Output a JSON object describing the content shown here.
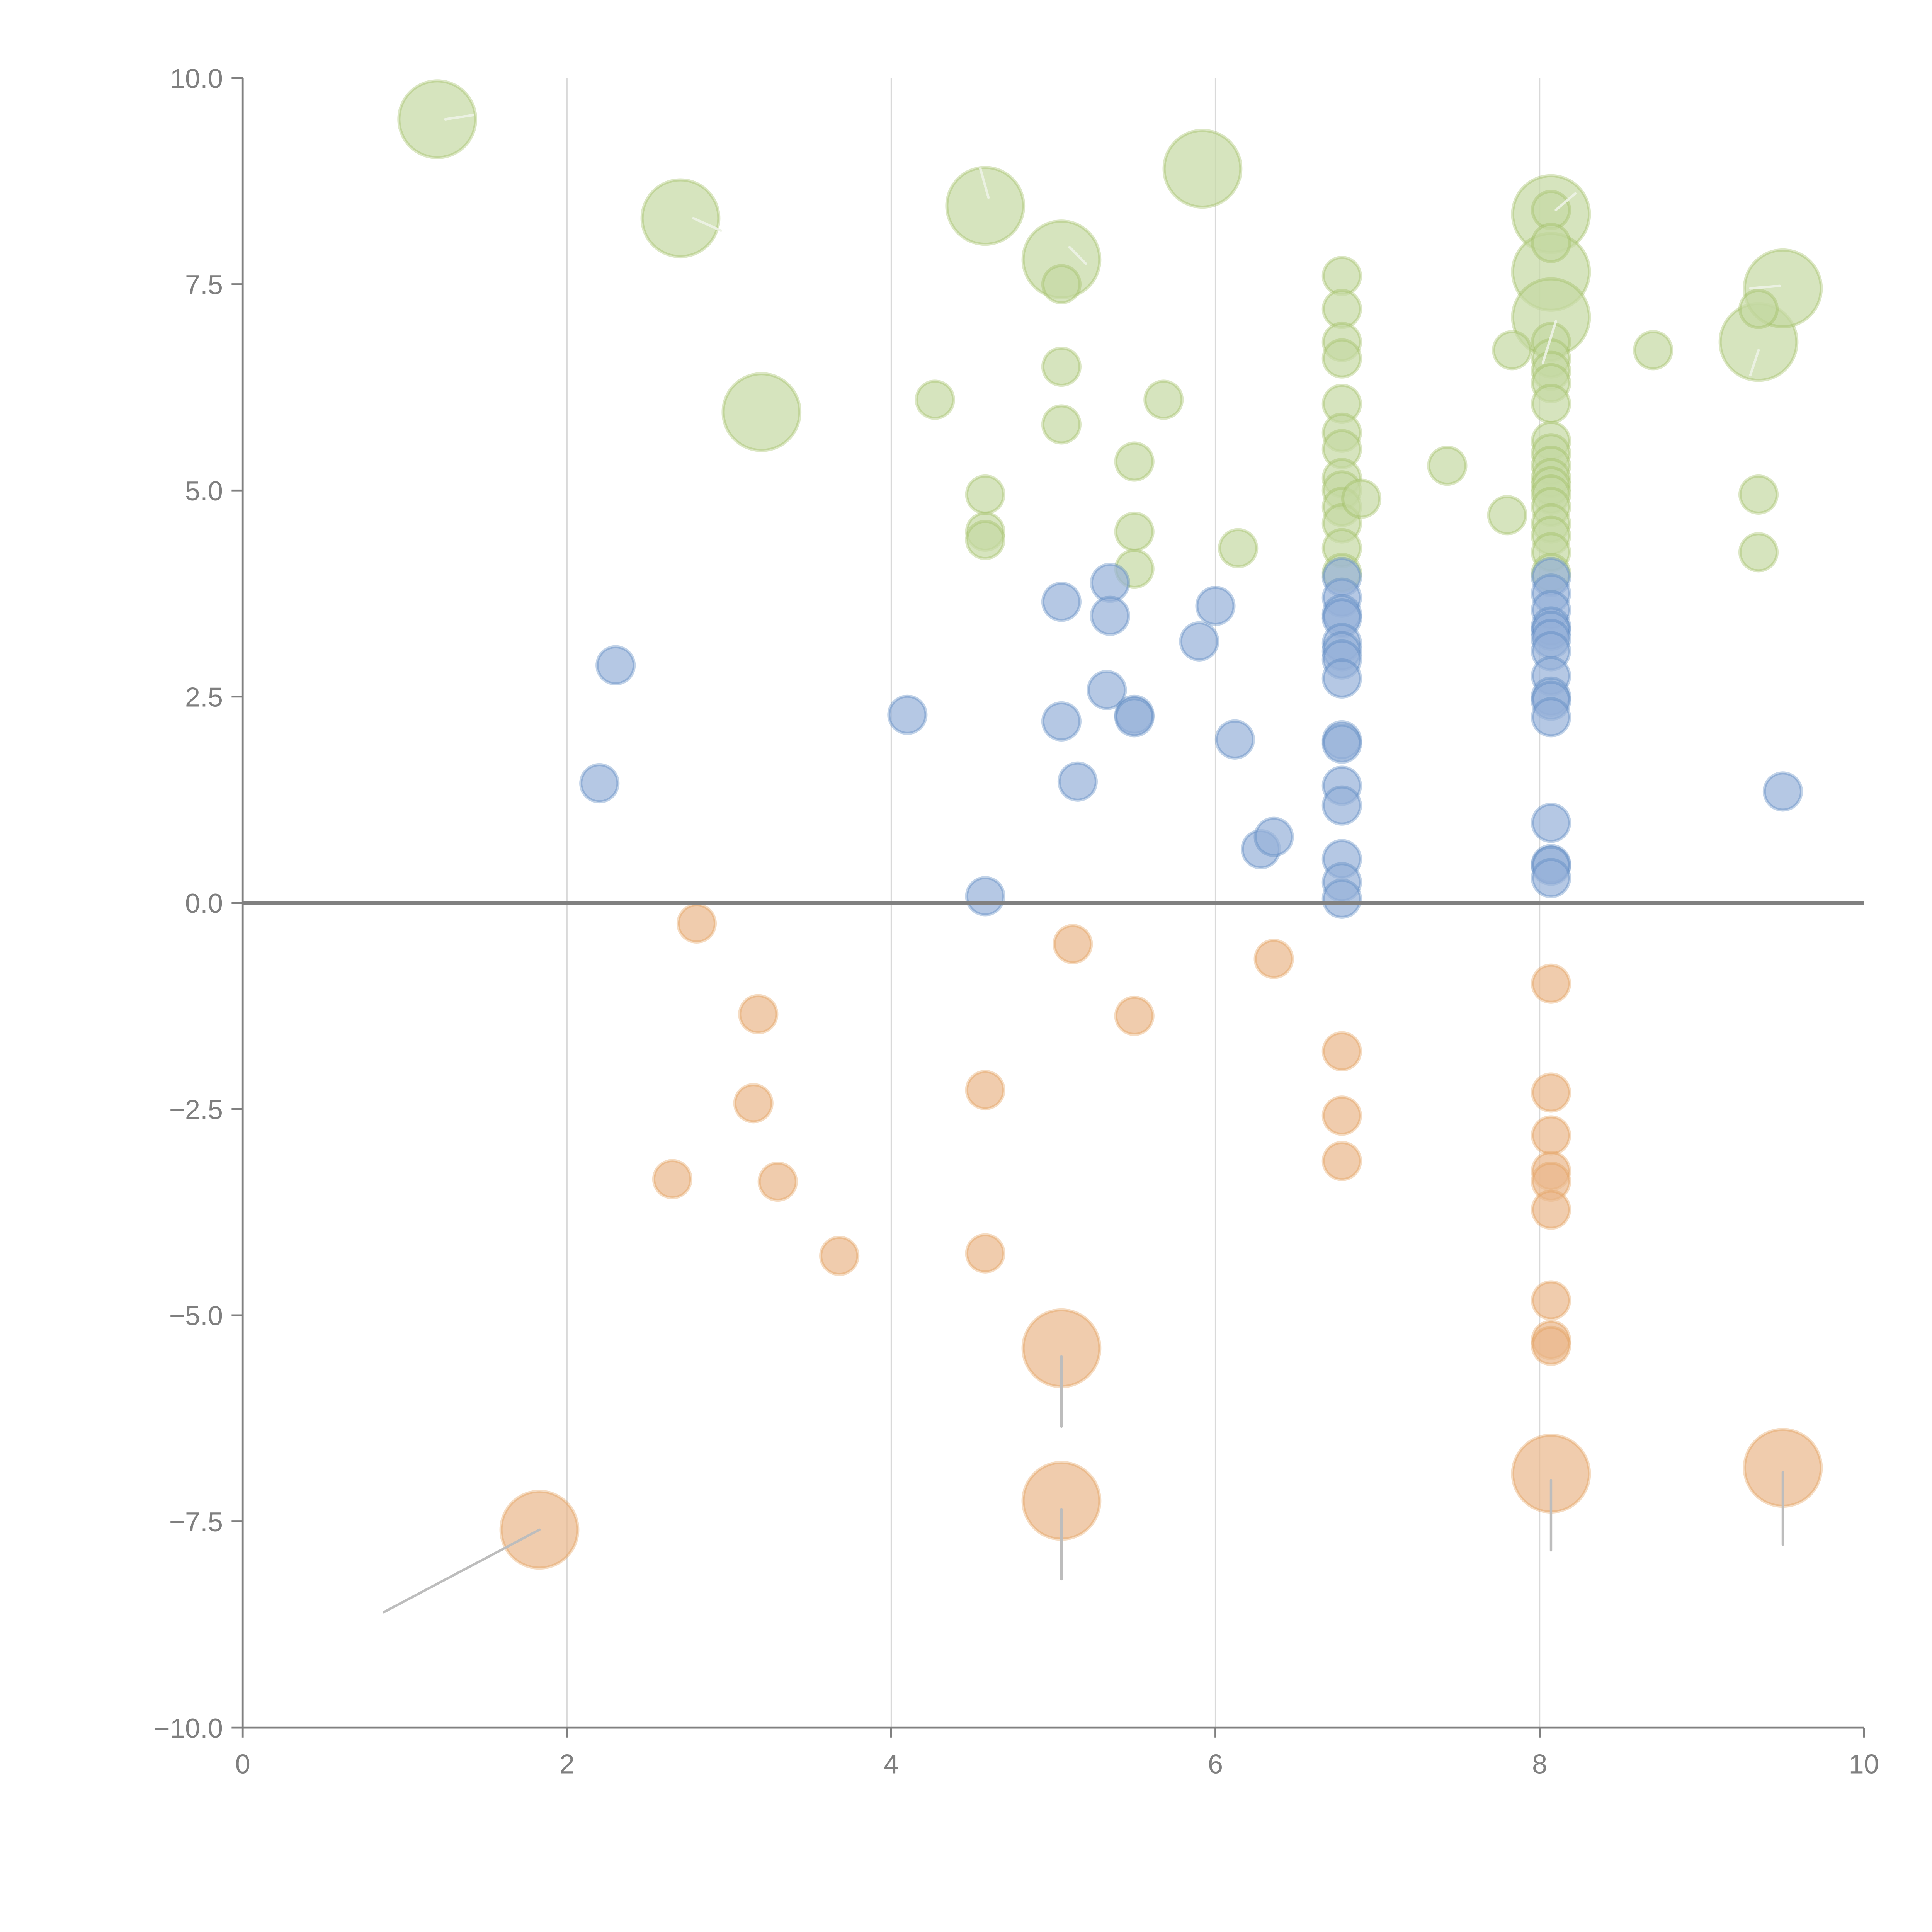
{
  "chart_data": {
    "type": "scatter",
    "subtype": "bubble",
    "title": "",
    "xlabel": "",
    "ylabel": "",
    "xlim": [
      0,
      10
    ],
    "ylim": [
      -10,
      10
    ],
    "xticks": [
      "0",
      "2",
      "4",
      "6",
      "8",
      "10"
    ],
    "yticks": [
      "10.0",
      "7.5",
      "5.0",
      "2.5",
      "0.0",
      "−2.5",
      "−5.0",
      "−7.5",
      "−10.0"
    ],
    "grid": "vertical",
    "zero_line": true,
    "legend": "none",
    "colors": {
      "green": "#9bbb59",
      "blue": "#4f81bd",
      "orange": "#e39a54"
    },
    "series": [
      {
        "name": "green",
        "color": "#9bbb59",
        "points": [
          {
            "x": 1.2,
            "y": 9.5,
            "size": "large"
          },
          {
            "x": 2.7,
            "y": 8.3,
            "size": "large"
          },
          {
            "x": 3.2,
            "y": 5.95,
            "size": "large"
          },
          {
            "x": 4.58,
            "y": 8.45,
            "size": "large"
          },
          {
            "x": 5.05,
            "y": 7.8,
            "size": "large"
          },
          {
            "x": 5.92,
            "y": 8.9,
            "size": "large"
          },
          {
            "x": 8.07,
            "y": 8.35,
            "size": "large"
          },
          {
            "x": 8.07,
            "y": 7.65,
            "size": "large"
          },
          {
            "x": 8.07,
            "y": 7.1,
            "size": "large"
          },
          {
            "x": 9.35,
            "y": 6.8,
            "size": "large"
          },
          {
            "x": 9.5,
            "y": 7.45,
            "size": "large"
          },
          {
            "x": 4.27,
            "y": 6.1,
            "size": "small"
          },
          {
            "x": 5.05,
            "y": 7.5,
            "size": "small"
          },
          {
            "x": 5.05,
            "y": 6.5,
            "size": "small"
          },
          {
            "x": 5.05,
            "y": 5.8,
            "size": "small"
          },
          {
            "x": 5.68,
            "y": 6.1,
            "size": "small"
          },
          {
            "x": 5.5,
            "y": 5.35,
            "size": "small"
          },
          {
            "x": 4.58,
            "y": 4.95,
            "size": "small"
          },
          {
            "x": 4.58,
            "y": 4.5,
            "size": "small"
          },
          {
            "x": 4.58,
            "y": 4.4,
            "size": "small"
          },
          {
            "x": 5.5,
            "y": 4.5,
            "size": "small"
          },
          {
            "x": 5.5,
            "y": 4.05,
            "size": "small"
          },
          {
            "x": 6.14,
            "y": 4.3,
            "size": "small"
          },
          {
            "x": 6.78,
            "y": 7.6,
            "size": "small"
          },
          {
            "x": 6.78,
            "y": 7.2,
            "size": "small"
          },
          {
            "x": 6.78,
            "y": 6.8,
            "size": "small"
          },
          {
            "x": 6.78,
            "y": 6.6,
            "size": "small"
          },
          {
            "x": 6.78,
            "y": 6.05,
            "size": "small"
          },
          {
            "x": 6.78,
            "y": 5.7,
            "size": "small"
          },
          {
            "x": 6.78,
            "y": 5.5,
            "size": "small"
          },
          {
            "x": 6.78,
            "y": 5.15,
            "size": "small"
          },
          {
            "x": 6.78,
            "y": 5.0,
            "size": "small"
          },
          {
            "x": 6.78,
            "y": 4.8,
            "size": "small"
          },
          {
            "x": 6.78,
            "y": 4.6,
            "size": "small"
          },
          {
            "x": 6.78,
            "y": 4.3,
            "size": "small"
          },
          {
            "x": 6.78,
            "y": 4.0,
            "size": "small"
          },
          {
            "x": 6.9,
            "y": 4.9,
            "size": "small"
          },
          {
            "x": 7.43,
            "y": 5.3,
            "size": "small"
          },
          {
            "x": 7.83,
            "y": 6.7,
            "size": "small"
          },
          {
            "x": 7.8,
            "y": 4.7,
            "size": "small"
          },
          {
            "x": 8.07,
            "y": 8.4,
            "size": "small"
          },
          {
            "x": 8.07,
            "y": 8.0,
            "size": "small"
          },
          {
            "x": 8.07,
            "y": 6.8,
            "size": "small"
          },
          {
            "x": 8.07,
            "y": 6.6,
            "size": "small"
          },
          {
            "x": 8.07,
            "y": 6.45,
            "size": "small"
          },
          {
            "x": 8.07,
            "y": 6.3,
            "size": "small"
          },
          {
            "x": 8.07,
            "y": 6.05,
            "size": "small"
          },
          {
            "x": 8.07,
            "y": 5.6,
            "size": "small"
          },
          {
            "x": 8.07,
            "y": 5.45,
            "size": "small"
          },
          {
            "x": 8.07,
            "y": 5.3,
            "size": "small"
          },
          {
            "x": 8.07,
            "y": 5.15,
            "size": "small"
          },
          {
            "x": 8.07,
            "y": 5.05,
            "size": "small"
          },
          {
            "x": 8.07,
            "y": 4.95,
            "size": "small"
          },
          {
            "x": 8.07,
            "y": 4.8,
            "size": "small"
          },
          {
            "x": 8.07,
            "y": 4.6,
            "size": "small"
          },
          {
            "x": 8.07,
            "y": 4.45,
            "size": "small"
          },
          {
            "x": 8.07,
            "y": 4.25,
            "size": "small"
          },
          {
            "x": 8.07,
            "y": 4.0,
            "size": "small"
          },
          {
            "x": 8.7,
            "y": 6.7,
            "size": "small"
          },
          {
            "x": 9.35,
            "y": 7.2,
            "size": "small"
          },
          {
            "x": 9.35,
            "y": 4.95,
            "size": "small"
          },
          {
            "x": 9.35,
            "y": 4.25,
            "size": "small"
          }
        ]
      },
      {
        "name": "blue",
        "color": "#4f81bd",
        "points": [
          {
            "x": 2.2,
            "y": 1.45
          },
          {
            "x": 2.3,
            "y": 2.88
          },
          {
            "x": 4.1,
            "y": 2.28
          },
          {
            "x": 4.58,
            "y": 0.08
          },
          {
            "x": 5.05,
            "y": 3.65
          },
          {
            "x": 5.05,
            "y": 2.2
          },
          {
            "x": 5.15,
            "y": 1.47
          },
          {
            "x": 5.33,
            "y": 2.58
          },
          {
            "x": 5.35,
            "y": 3.88
          },
          {
            "x": 5.35,
            "y": 3.48
          },
          {
            "x": 5.5,
            "y": 2.28
          },
          {
            "x": 5.5,
            "y": 2.25
          },
          {
            "x": 5.9,
            "y": 3.17
          },
          {
            "x": 6.0,
            "y": 3.6
          },
          {
            "x": 6.12,
            "y": 1.98
          },
          {
            "x": 6.28,
            "y": 0.65
          },
          {
            "x": 6.36,
            "y": 0.8
          },
          {
            "x": 6.78,
            "y": 3.95
          },
          {
            "x": 6.78,
            "y": 3.7
          },
          {
            "x": 6.78,
            "y": 3.5
          },
          {
            "x": 6.78,
            "y": 3.45
          },
          {
            "x": 6.78,
            "y": 3.15
          },
          {
            "x": 6.78,
            "y": 3.05
          },
          {
            "x": 6.78,
            "y": 2.95
          },
          {
            "x": 6.78,
            "y": 2.72
          },
          {
            "x": 6.78,
            "y": 1.97
          },
          {
            "x": 6.78,
            "y": 1.93
          },
          {
            "x": 6.78,
            "y": 1.42
          },
          {
            "x": 6.78,
            "y": 1.18
          },
          {
            "x": 6.78,
            "y": 0.53
          },
          {
            "x": 6.78,
            "y": 0.25
          },
          {
            "x": 6.78,
            "y": 0.05
          },
          {
            "x": 8.07,
            "y": 3.95
          },
          {
            "x": 8.07,
            "y": 3.75
          },
          {
            "x": 8.07,
            "y": 3.55
          },
          {
            "x": 8.07,
            "y": 3.35
          },
          {
            "x": 8.07,
            "y": 3.3
          },
          {
            "x": 8.07,
            "y": 3.2
          },
          {
            "x": 8.07,
            "y": 3.05
          },
          {
            "x": 8.07,
            "y": 2.75
          },
          {
            "x": 8.07,
            "y": 2.5
          },
          {
            "x": 8.07,
            "y": 2.45
          },
          {
            "x": 8.07,
            "y": 2.25
          },
          {
            "x": 8.07,
            "y": 0.97
          },
          {
            "x": 8.07,
            "y": 0.47
          },
          {
            "x": 8.07,
            "y": 0.45
          },
          {
            "x": 8.07,
            "y": 0.3
          },
          {
            "x": 9.5,
            "y": 1.35
          }
        ]
      },
      {
        "name": "orange",
        "color": "#e39a54",
        "points": [
          {
            "x": 2.8,
            "y": -0.25,
            "size": "small"
          },
          {
            "x": 3.18,
            "y": -1.35,
            "size": "small"
          },
          {
            "x": 3.15,
            "y": -2.43,
            "size": "small"
          },
          {
            "x": 2.65,
            "y": -3.35,
            "size": "small"
          },
          {
            "x": 3.3,
            "y": -3.38,
            "size": "small"
          },
          {
            "x": 3.68,
            "y": -4.28,
            "size": "small"
          },
          {
            "x": 4.58,
            "y": -2.27,
            "size": "small"
          },
          {
            "x": 4.58,
            "y": -4.25,
            "size": "small"
          },
          {
            "x": 5.12,
            "y": -0.5,
            "size": "small"
          },
          {
            "x": 5.5,
            "y": -1.37,
            "size": "small"
          },
          {
            "x": 6.36,
            "y": -0.68,
            "size": "small"
          },
          {
            "x": 6.78,
            "y": -1.8,
            "size": "small"
          },
          {
            "x": 6.78,
            "y": -2.58,
            "size": "small"
          },
          {
            "x": 6.78,
            "y": -3.13,
            "size": "small"
          },
          {
            "x": 8.07,
            "y": -0.98,
            "size": "small"
          },
          {
            "x": 8.07,
            "y": -2.3,
            "size": "small"
          },
          {
            "x": 8.07,
            "y": -2.82,
            "size": "small"
          },
          {
            "x": 8.07,
            "y": -3.25,
            "size": "small"
          },
          {
            "x": 8.07,
            "y": -3.38,
            "size": "small"
          },
          {
            "x": 8.07,
            "y": -3.72,
            "size": "small"
          },
          {
            "x": 8.07,
            "y": -4.82,
            "size": "small"
          },
          {
            "x": 8.07,
            "y": -5.3,
            "size": "small"
          },
          {
            "x": 8.07,
            "y": -5.37,
            "size": "small"
          },
          {
            "x": 1.83,
            "y": -7.6,
            "size": "large"
          },
          {
            "x": 5.05,
            "y": -5.4,
            "size": "large"
          },
          {
            "x": 5.05,
            "y": -7.25,
            "size": "large"
          },
          {
            "x": 8.07,
            "y": -6.92,
            "size": "large"
          },
          {
            "x": 9.5,
            "y": -6.85,
            "size": "large"
          }
        ]
      }
    ],
    "leader_lines": [
      {
        "from": [
          1.83,
          -7.6
        ],
        "to": [
          0.87,
          -8.6
        ],
        "color": "gray"
      },
      {
        "from": [
          5.05,
          -5.5
        ],
        "to": [
          5.05,
          -6.35
        ],
        "color": "gray"
      },
      {
        "from": [
          5.05,
          -7.35
        ],
        "to": [
          5.05,
          -8.2
        ],
        "color": "gray"
      },
      {
        "from": [
          8.07,
          -7.0
        ],
        "to": [
          8.07,
          -7.85
        ],
        "color": "gray"
      },
      {
        "from": [
          9.5,
          -6.9
        ],
        "to": [
          9.5,
          -7.78
        ],
        "color": "gray"
      },
      {
        "from": [
          1.25,
          9.5
        ],
        "to": [
          1.42,
          9.55
        ],
        "color": "light"
      },
      {
        "from": [
          2.78,
          8.3
        ],
        "to": [
          2.95,
          8.15
        ],
        "color": "light"
      },
      {
        "from": [
          4.55,
          8.9
        ],
        "to": [
          4.6,
          8.55
        ],
        "color": "light"
      },
      {
        "from": [
          5.1,
          7.95
        ],
        "to": [
          5.2,
          7.75
        ],
        "color": "light"
      },
      {
        "from": [
          8.1,
          8.4
        ],
        "to": [
          8.22,
          8.6
        ],
        "color": "light"
      },
      {
        "from": [
          8.1,
          7.05
        ],
        "to": [
          8.02,
          6.55
        ],
        "color": "light"
      },
      {
        "from": [
          9.3,
          7.45
        ],
        "to": [
          9.48,
          7.48
        ],
        "color": "light"
      },
      {
        "from": [
          9.35,
          6.7
        ],
        "to": [
          9.3,
          6.4
        ],
        "color": "light"
      }
    ]
  }
}
